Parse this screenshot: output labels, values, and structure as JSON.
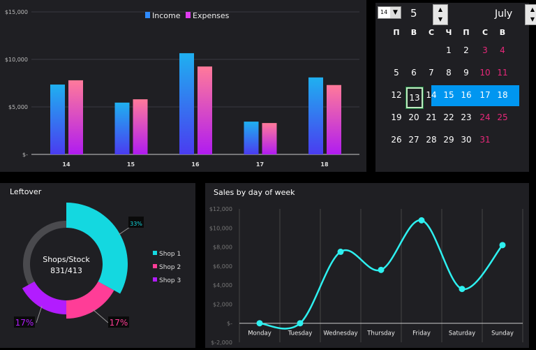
{
  "colors": {
    "income": "#2f8bff",
    "expenses": "#e03cf0",
    "shop1": "#14d8e0",
    "shop2": "#ff3d97",
    "shop3": "#b21cff",
    "line": "#2ef0f0",
    "highlight": "#0096f0",
    "weekend": "#e8287a"
  },
  "bar_chart": {
    "type": "bar",
    "legend": [
      "Income",
      "Expenses"
    ],
    "categories": [
      "14",
      "15",
      "16",
      "17",
      "18"
    ],
    "series": [
      {
        "name": "Income",
        "values": [
          7350,
          5450,
          10650,
          3450,
          8100
        ]
      },
      {
        "name": "Expenses",
        "values": [
          7800,
          5800,
          9250,
          3300,
          7300
        ]
      }
    ],
    "yticks": [
      "$-",
      "$5,000",
      "$10,000",
      "$15,000"
    ],
    "ylim": [
      0,
      15000
    ]
  },
  "calendar": {
    "day_select": "14",
    "week_number": "5",
    "month": "July",
    "weekday_headers": [
      "П",
      "В",
      "С",
      "Ч",
      "П",
      "С",
      "В"
    ],
    "weeks": [
      [
        "",
        "",
        "",
        "1",
        "2",
        "3",
        "4"
      ],
      [
        "5",
        "6",
        "7",
        "8",
        "9",
        "10",
        "11"
      ],
      [
        "12",
        "13",
        "14",
        "15",
        "16",
        "17",
        "18"
      ],
      [
        "19",
        "20",
        "21",
        "22",
        "23",
        "24",
        "25"
      ],
      [
        "26",
        "27",
        "28",
        "29",
        "30",
        "31",
        ""
      ]
    ],
    "selected_day": "13",
    "highlighted_week": 3
  },
  "leftover": {
    "title": "Leftover",
    "center_line1": "Shops/Stock",
    "center_line2": "831/413",
    "slices": [
      {
        "name": "Shop 1",
        "value": 33,
        "label": "33%"
      },
      {
        "name": "Shop 2",
        "value": 17,
        "label": "17%"
      },
      {
        "name": "Shop 3",
        "value": 17,
        "label": "17%"
      }
    ]
  },
  "chart_data": {
    "type": "line",
    "title": "Sales by day of week",
    "categories": [
      "Monday",
      "Tuesday",
      "Wednesday",
      "Thursday",
      "Friday",
      "Saturday",
      "Sunday"
    ],
    "values": [
      0,
      0,
      7500,
      5600,
      10800,
      3600,
      8200
    ],
    "yticks": [
      "$-2,000",
      "$-",
      "$2,000",
      "$4,000",
      "$6,000",
      "$8,000",
      "$10,000",
      "$12,000"
    ],
    "ylim": [
      -2000,
      12000
    ],
    "grid": "vertical"
  }
}
